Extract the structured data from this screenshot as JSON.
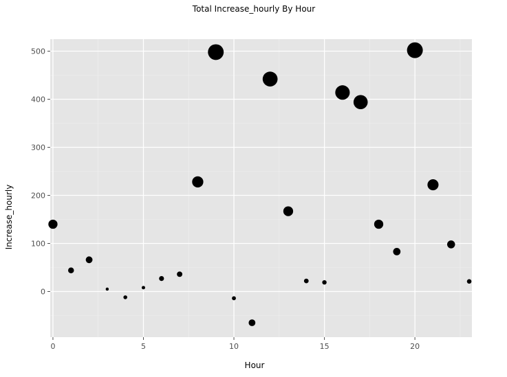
{
  "chart_data": {
    "type": "scatter",
    "title": "Total Increase_hourly By Hour",
    "xlabel": "Hour",
    "ylabel": "Increase_hourly",
    "xlim": [
      -0.15,
      23.15
    ],
    "ylim": [
      -95,
      525
    ],
    "x_ticks": [
      0,
      5,
      10,
      15,
      20
    ],
    "y_ticks": [
      0,
      100,
      200,
      300,
      400,
      500
    ],
    "grid": true,
    "point_size_encodes": "Increase_hourly magnitude",
    "x": [
      0,
      1,
      2,
      3,
      4,
      5,
      6,
      7,
      8,
      9,
      10,
      11,
      12,
      13,
      14,
      15,
      16,
      17,
      18,
      19,
      20,
      21,
      22,
      23
    ],
    "y": [
      140,
      44,
      66,
      5,
      -12,
      8,
      27,
      36,
      228,
      498,
      -14,
      -65,
      442,
      167,
      22,
      19,
      414,
      394,
      140,
      83,
      502,
      222,
      98,
      21
    ],
    "colors": {
      "panel_background": "#e5e5e5",
      "grid_major": "#ffffff",
      "grid_minor": "#f0f0f0",
      "point": "#000000",
      "tick_label": "#4d4d4d"
    }
  }
}
